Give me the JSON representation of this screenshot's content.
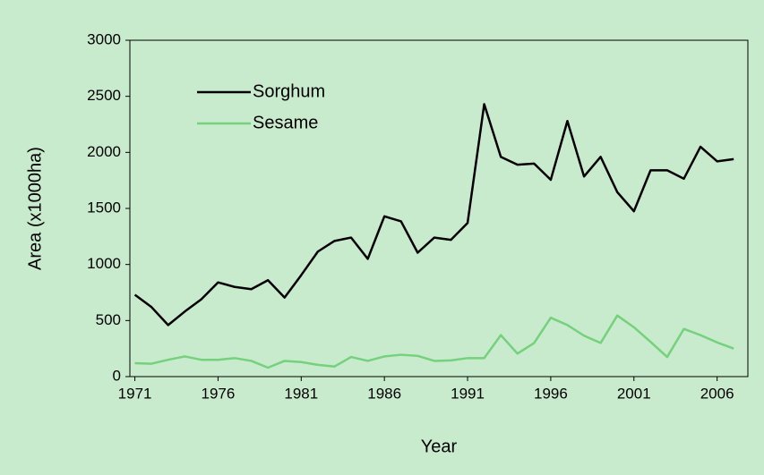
{
  "chart_data": {
    "type": "line",
    "x_label": "Year",
    "y_label": "Area (x1000ha)",
    "x": [
      1971,
      1972,
      1973,
      1974,
      1975,
      1976,
      1977,
      1978,
      1979,
      1980,
      1981,
      1982,
      1983,
      1984,
      1985,
      1986,
      1987,
      1988,
      1989,
      1990,
      1991,
      1992,
      1993,
      1994,
      1995,
      1996,
      1997,
      1998,
      1999,
      2000,
      2001,
      2002,
      2003,
      2004,
      2005,
      2006,
      2007
    ],
    "series": [
      {
        "name": "Sorghum",
        "color": "#000000",
        "values": [
          730,
          620,
          460,
          580,
          690,
          840,
          800,
          780,
          860,
          705,
          905,
          1115,
          1210,
          1240,
          1050,
          1430,
          1385,
          1105,
          1240,
          1220,
          1370,
          2430,
          1960,
          1890,
          1900,
          1755,
          2280,
          1785,
          1960,
          1645,
          1475,
          1840,
          1840,
          1765,
          2050,
          1920,
          1940
        ]
      },
      {
        "name": "Sesame",
        "color": "#74d17c",
        "values": [
          120,
          115,
          150,
          180,
          150,
          150,
          165,
          140,
          80,
          140,
          130,
          105,
          90,
          175,
          140,
          180,
          195,
          185,
          140,
          145,
          165,
          165,
          370,
          205,
          300,
          525,
          460,
          365,
          300,
          545,
          440,
          310,
          175,
          425,
          370,
          305,
          250
        ]
      }
    ],
    "xlim": [
      1970.7,
      2007.85
    ],
    "xticks": [
      1971,
      1976,
      1981,
      1986,
      1991,
      1996,
      2001,
      2006
    ],
    "ylim": [
      0,
      3000
    ],
    "yticks": [
      0,
      500,
      1000,
      1500,
      2000,
      2500,
      3000
    ],
    "grid": false,
    "legend": "upper left"
  }
}
